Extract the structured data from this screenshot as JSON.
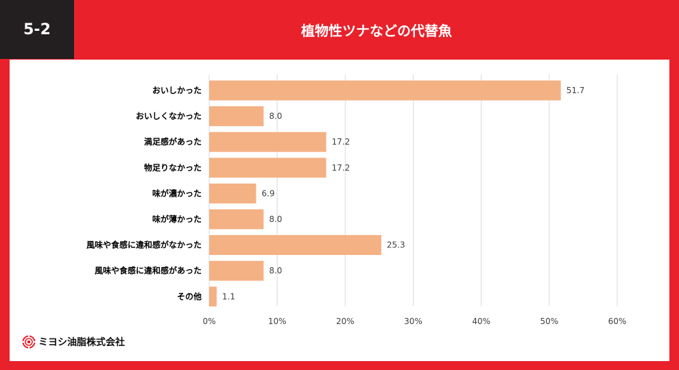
{
  "header": {
    "badge": "5-2",
    "title": "植物性ツナなどの代替魚"
  },
  "brand": {
    "name": "ミヨシ油脂株式会社",
    "logo": "miyoshi-logo-icon",
    "color": "#e8212b"
  },
  "colors": {
    "bar": "#f4b183",
    "grid": "#d9d9d9",
    "label": "#000000",
    "value": "#404040"
  },
  "chart_data": {
    "type": "bar",
    "orientation": "horizontal",
    "categories": [
      "おいしかった",
      "おいしくなかった",
      "満足感があった",
      "物足りなかった",
      "味が濃かった",
      "味が薄かった",
      "風味や食感に違和感がなかった",
      "風味や食感に違和感があった",
      "その他"
    ],
    "values": [
      51.7,
      8.0,
      17.2,
      17.2,
      6.9,
      8.0,
      25.3,
      8.0,
      1.1
    ],
    "value_labels": [
      "51.7",
      "8.0",
      "17.2",
      "17.2",
      "6.9",
      "8.0",
      "25.3",
      "8.0",
      "1.1"
    ],
    "xlim": [
      0,
      60
    ],
    "x_ticks": [
      0,
      10,
      20,
      30,
      40,
      50,
      60
    ],
    "x_tick_labels": [
      "0%",
      "10%",
      "20%",
      "30%",
      "40%",
      "50%",
      "60%"
    ],
    "grid": true,
    "legend": "none"
  }
}
